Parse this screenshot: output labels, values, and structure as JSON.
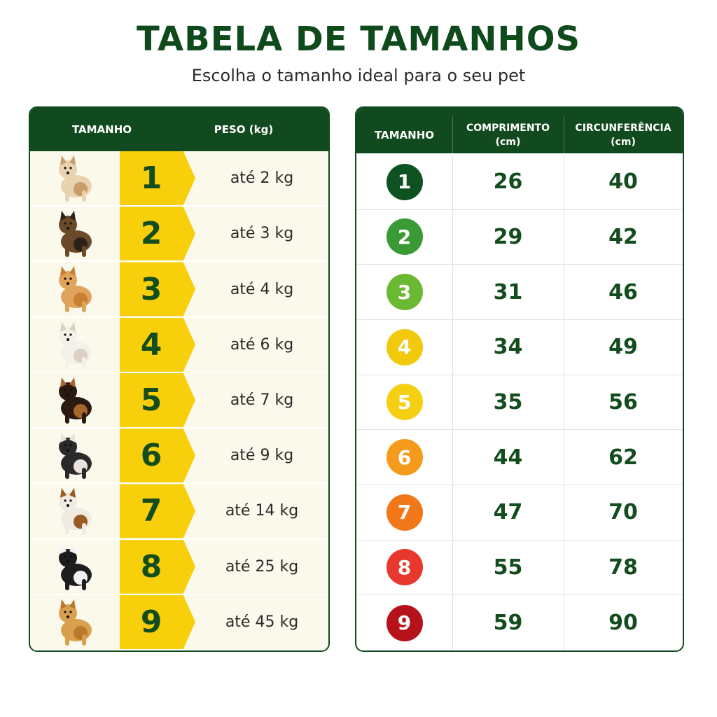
{
  "header": {
    "title": "TABELA DE TAMANHOS",
    "subtitle": "Escolha o tamanho ideal para o seu pet"
  },
  "weight_table": {
    "columns": [
      "TAMANHO",
      "PESO (kg)"
    ],
    "rows": [
      {
        "size": 1,
        "weight": "até 2 kg"
      },
      {
        "size": 2,
        "weight": "até 3 kg"
      },
      {
        "size": 3,
        "weight": "até 4 kg"
      },
      {
        "size": 4,
        "weight": "até 6 kg"
      },
      {
        "size": 5,
        "weight": "até 7 kg"
      },
      {
        "size": 6,
        "weight": "até 9 kg"
      },
      {
        "size": 7,
        "weight": "até 14 kg"
      },
      {
        "size": 8,
        "weight": "até 25 kg"
      },
      {
        "size": 9,
        "weight": "até 45 kg"
      }
    ]
  },
  "measures_table": {
    "columns": [
      [
        "TAMANHO"
      ],
      [
        "COMPRIMENTO",
        "(cm)"
      ],
      [
        "CIRCUNFERÊNCIA",
        "(cm)"
      ]
    ],
    "rows": [
      {
        "size": 1,
        "length": 26,
        "circumference": 40,
        "color": "#0d5220"
      },
      {
        "size": 2,
        "length": 29,
        "circumference": 42,
        "color": "#3a9a36"
      },
      {
        "size": 3,
        "length": 31,
        "circumference": 46,
        "color": "#6bb833"
      },
      {
        "size": 4,
        "length": 34,
        "circumference": 49,
        "color": "#f2c90d"
      },
      {
        "size": 5,
        "length": 35,
        "circumference": 56,
        "color": "#f5cf12"
      },
      {
        "size": 6,
        "length": 44,
        "circumference": 62,
        "color": "#f59a1c"
      },
      {
        "size": 7,
        "length": 47,
        "circumference": 70,
        "color": "#f27718"
      },
      {
        "size": 8,
        "length": 55,
        "circumference": 78,
        "color": "#e8372d"
      },
      {
        "size": 9,
        "length": 59,
        "circumference": 90,
        "color": "#b5121b"
      }
    ]
  }
}
